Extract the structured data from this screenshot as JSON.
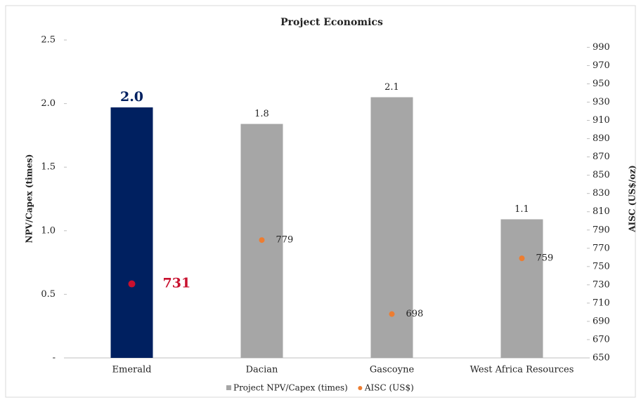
{
  "chart_data": {
    "type": "bar+scatter",
    "title": "Project Economics",
    "ylabel": "NPV/Capex (times)",
    "y2label": "AISC (US$/oz)",
    "categories": [
      "Emerald",
      "Dacian",
      "Gascoyne",
      "West Africa Resources"
    ],
    "ylim": [
      0,
      2.5
    ],
    "yticks": [
      {
        "value": 0,
        "label": "-"
      },
      0.5,
      {
        "value": 1,
        "label": "1.0"
      },
      1.5,
      {
        "value": 2,
        "label": "2.0"
      },
      2.5
    ],
    "y2lim": [
      650,
      998
    ],
    "y2ticks": [
      650,
      670,
      690,
      710,
      730,
      750,
      770,
      790,
      810,
      830,
      850,
      870,
      890,
      910,
      930,
      950,
      970,
      990
    ],
    "series": [
      {
        "name": "Project NPV/Capex (times)",
        "type": "bar",
        "color": "#a6a6a6",
        "point_colors": [
          "#002060",
          "#a6a6a6",
          "#a6a6a6",
          "#a6a6a6"
        ],
        "values": [
          1.97,
          1.84,
          2.05,
          1.09
        ],
        "value_labels": [
          "2.0",
          "1.8",
          "2.1",
          "1.1"
        ]
      },
      {
        "name": "AISC (US$)",
        "type": "scatter",
        "axis": "y2",
        "color": "#ed7d31",
        "point_colors": [
          "#c8102e",
          "#ed7d31",
          "#ed7d31",
          "#ed7d31"
        ],
        "values": [
          731,
          779,
          698,
          759
        ]
      }
    ]
  }
}
